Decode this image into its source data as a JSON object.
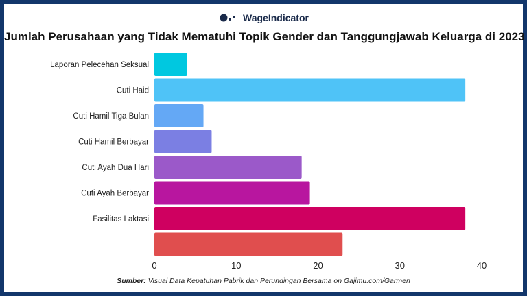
{
  "brand": {
    "logo_text": "WageIndicator",
    "logo_icon": "wageindicator-dots-logo"
  },
  "title": "Jumlah Perusahaan yang Tidak Mematuhi Topik Gender dan Tanggungjawab Keluarga di 2023",
  "source": {
    "prefix": "Sumber:",
    "text": "Visual Data Kepatuhan Pabrik dan Perundingan Bersama on Gajimu.com/Garmen"
  },
  "chart_data": {
    "type": "bar",
    "orientation": "horizontal",
    "title": "Jumlah Perusahaan yang Tidak Mematuhi Topik Gender dan Tanggungjawab Keluarga di 2023",
    "categories": [
      "Laporan Pelecehan Seksual",
      "Cuti Haid",
      "Cuti Hamil Tiga Bulan",
      "Cuti Hamil Berbayar",
      "Cuti Ayah Dua Hari",
      "Cuti Ayah Berbayar",
      "Fasilitas Laktasi",
      ""
    ],
    "values": [
      4,
      38,
      6,
      7,
      18,
      19,
      38,
      23
    ],
    "colors": [
      "#00c8e0",
      "#4fc3f7",
      "#64a8f5",
      "#7b7fe3",
      "#9b59c9",
      "#b8169f",
      "#cf0060",
      "#e04e4e"
    ],
    "xlim": [
      0,
      40
    ],
    "xticks": [
      0,
      10,
      20,
      30,
      40
    ],
    "grid": false,
    "legend": "none"
  }
}
